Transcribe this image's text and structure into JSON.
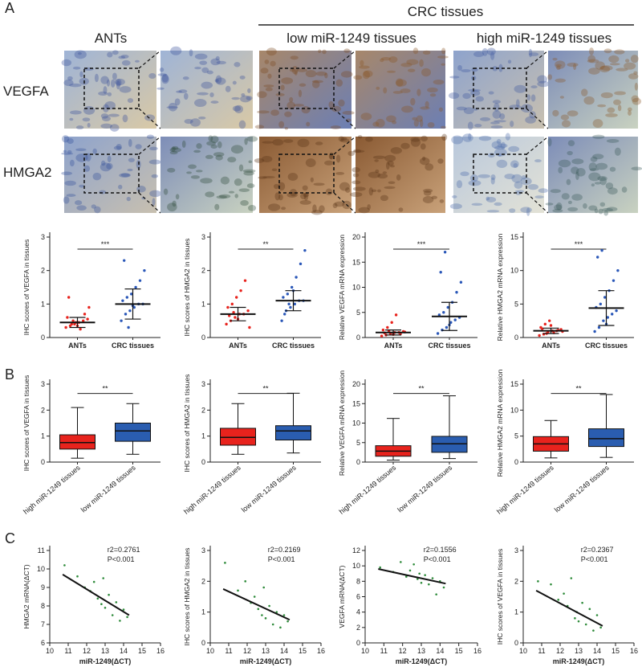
{
  "figure": {
    "panel_labels": [
      "A",
      "B",
      "C"
    ],
    "group_label": "CRC tissues",
    "column_labels": [
      "ANTs",
      "low miR-1249 tissues",
      "high miR-1249 tissues"
    ],
    "row_labels": [
      "VEGFA",
      "HMGA2"
    ]
  },
  "chart_data": [
    {
      "type": "dotplot",
      "ylabel": "IHC scores of VEGFA in tissues",
      "categories": [
        "ANTs",
        "CRC tissues"
      ],
      "ylim": [
        0,
        3
      ],
      "yticks": [
        0,
        1,
        2,
        3
      ],
      "significance": "***",
      "groups": [
        {
          "color": "#e8231d",
          "mean": 0.45,
          "sd": 0.15,
          "points": [
            0.3,
            0.35,
            0.4,
            0.45,
            0.5,
            0.55,
            0.6,
            0.4,
            0.45,
            0.25,
            0.7,
            0.9,
            1.2,
            0.5,
            0.35
          ]
        },
        {
          "color": "#2a57b8",
          "mean": 1.0,
          "sd": 0.45,
          "points": [
            0.5,
            0.7,
            0.8,
            0.9,
            1.0,
            1.0,
            1.1,
            1.2,
            1.3,
            1.5,
            1.7,
            2.0,
            2.3,
            0.3,
            0.95
          ]
        }
      ]
    },
    {
      "type": "dotplot",
      "ylabel": "IHC scores of HMGA2 in tissues",
      "categories": [
        "ANTs",
        "CRC tissues"
      ],
      "ylim": [
        0,
        3
      ],
      "yticks": [
        0,
        1,
        2,
        3
      ],
      "significance": "**",
      "groups": [
        {
          "color": "#e8231d",
          "mean": 0.7,
          "sd": 0.2,
          "points": [
            0.4,
            0.5,
            0.6,
            0.7,
            0.7,
            0.8,
            0.9,
            1.0,
            1.2,
            1.4,
            1.7,
            0.3,
            0.65,
            0.75,
            0.55
          ]
        },
        {
          "color": "#2a57b8",
          "mean": 1.1,
          "sd": 0.3,
          "points": [
            0.5,
            0.8,
            0.9,
            1.0,
            1.1,
            1.1,
            1.2,
            1.3,
            1.5,
            1.8,
            2.2,
            2.6,
            0.7,
            1.0,
            1.4
          ]
        }
      ]
    },
    {
      "type": "dotplot",
      "ylabel": "Relative VEGFA mRNA expression",
      "categories": [
        "ANTs",
        "CRC tissues"
      ],
      "ylim": [
        0,
        20
      ],
      "yticks": [
        0,
        5,
        10,
        15,
        20
      ],
      "significance": "***",
      "groups": [
        {
          "color": "#e8231d",
          "mean": 1.0,
          "sd": 0.5,
          "points": [
            0.3,
            0.5,
            0.8,
            1.0,
            1.0,
            1.2,
            1.5,
            2.0,
            3.0,
            4.5,
            0.7,
            1.1,
            0.9,
            1.3,
            0.6
          ]
        },
        {
          "color": "#2a57b8",
          "mean": 4.2,
          "sd": 2.8,
          "points": [
            0.8,
            1.5,
            2.0,
            3.0,
            3.5,
            4.0,
            4.5,
            5.0,
            6.0,
            7.0,
            9.0,
            11.0,
            13.0,
            17.0,
            2.5
          ]
        }
      ]
    },
    {
      "type": "dotplot",
      "ylabel": "Relative HMGA2 mRNA expression",
      "categories": [
        "ANTs",
        "CRC tissues"
      ],
      "ylim": [
        0,
        15
      ],
      "yticks": [
        0,
        5,
        10,
        15
      ],
      "significance": "***",
      "groups": [
        {
          "color": "#e8231d",
          "mean": 1.0,
          "sd": 0.4,
          "points": [
            0.3,
            0.5,
            0.8,
            1.0,
            1.0,
            1.2,
            1.5,
            2.0,
            2.5,
            0.7,
            1.1,
            0.9,
            1.3,
            0.6,
            1.8
          ]
        },
        {
          "color": "#2a57b8",
          "mean": 4.4,
          "sd": 2.6,
          "points": [
            0.9,
            1.5,
            2.5,
            3.0,
            3.5,
            4.0,
            4.5,
            5.0,
            6.0,
            7.0,
            8.5,
            10.0,
            12.0,
            13.0,
            2.0
          ]
        }
      ]
    },
    {
      "type": "box",
      "ylabel": "IHC scores of VEGFA in tissues",
      "categories": [
        "high miR-1249 tissues",
        "low miR-1249 tissues"
      ],
      "ylim": [
        0,
        3
      ],
      "yticks": [
        0,
        1,
        2,
        3
      ],
      "significance": "**",
      "boxes": [
        {
          "color": "#e8231d",
          "min": 0.15,
          "q1": 0.5,
          "median": 0.75,
          "q3": 1.05,
          "max": 2.1
        },
        {
          "color": "#2a5db0",
          "min": 0.3,
          "q1": 0.8,
          "median": 1.2,
          "q3": 1.5,
          "max": 2.25
        }
      ]
    },
    {
      "type": "box",
      "ylabel": "IHC scores of HMGA2 in tissues",
      "categories": [
        "high miR-1249 tissues",
        "low miR-1249 tissues"
      ],
      "ylim": [
        0,
        3
      ],
      "yticks": [
        0,
        1,
        2,
        3
      ],
      "significance": "**",
      "boxes": [
        {
          "color": "#e8231d",
          "min": 0.3,
          "q1": 0.65,
          "median": 0.95,
          "q3": 1.3,
          "max": 2.25
        },
        {
          "color": "#2a5db0",
          "min": 0.35,
          "q1": 0.85,
          "median": 1.2,
          "q3": 1.4,
          "max": 2.65
        }
      ]
    },
    {
      "type": "box",
      "ylabel": "Relative VEGFA mRNA expression",
      "categories": [
        "high miR-1249 tissues",
        "low miR-1249 tissues"
      ],
      "ylim": [
        0,
        20
      ],
      "yticks": [
        0,
        5,
        10,
        15,
        20
      ],
      "significance": "**",
      "boxes": [
        {
          "color": "#e8231d",
          "min": 0.5,
          "q1": 1.5,
          "median": 2.8,
          "q3": 4.2,
          "max": 11.2
        },
        {
          "color": "#2a5db0",
          "min": 0.9,
          "q1": 2.5,
          "median": 4.7,
          "q3": 6.6,
          "max": 17
        }
      ]
    },
    {
      "type": "box",
      "ylabel": "Relative HMGA2 mRNA expression",
      "categories": [
        "high miR-1249 tissues",
        "low miR-1249 tissues"
      ],
      "ylim": [
        0,
        15
      ],
      "yticks": [
        0,
        5,
        10,
        15
      ],
      "significance": "**",
      "boxes": [
        {
          "color": "#e8231d",
          "min": 0.8,
          "q1": 2.1,
          "median": 3.5,
          "q3": 4.9,
          "max": 8.0
        },
        {
          "color": "#2a5db0",
          "min": 0.9,
          "q1": 3.0,
          "median": 4.5,
          "q3": 6.4,
          "max": 13.0
        }
      ]
    },
    {
      "type": "scatter",
      "ylabel": "HMGA2 mRNA(ΔCT)",
      "xlabel": "miR-1249(ΔCT)",
      "annotations": [
        "r2=0.2761",
        "P<0.001"
      ],
      "color": "#2e8b3a",
      "xlim": [
        10,
        16
      ],
      "xticks": [
        10,
        11,
        12,
        13,
        14,
        15,
        16
      ],
      "ylim": [
        6,
        11
      ],
      "yticks": [
        6,
        7,
        8,
        9,
        10,
        11
      ],
      "x": [
        10.8,
        11.5,
        11.9,
        12.2,
        12.4,
        12.6,
        12.8,
        12.9,
        13.0,
        13.2,
        13.4,
        13.6,
        13.8,
        14.0,
        14.2
      ],
      "y": [
        10.2,
        9.6,
        9.0,
        8.8,
        9.3,
        8.4,
        8.1,
        9.5,
        7.9,
        8.6,
        7.5,
        8.2,
        7.2,
        7.8,
        7.4
      ],
      "fit": {
        "x": [
          10.7,
          14.3
        ],
        "y": [
          9.7,
          7.5
        ]
      }
    },
    {
      "type": "scatter",
      "ylabel": "IHC scores of HMGA2 in tissues",
      "xlabel": "miR-1249(ΔCT)",
      "annotations": [
        "r2=0.2169",
        "P<0.001"
      ],
      "color": "#2e8b3a",
      "xlim": [
        10,
        16
      ],
      "xticks": [
        10,
        11,
        12,
        13,
        14,
        15,
        16
      ],
      "ylim": [
        0,
        3
      ],
      "yticks": [
        0,
        1,
        2,
        3
      ],
      "x": [
        10.8,
        11.5,
        11.9,
        12.2,
        12.4,
        12.6,
        12.8,
        12.9,
        13.0,
        13.2,
        13.4,
        13.6,
        13.8,
        14.0,
        14.2
      ],
      "y": [
        2.6,
        1.7,
        2.0,
        1.3,
        1.5,
        1.1,
        0.9,
        1.8,
        0.8,
        1.2,
        0.6,
        1.0,
        0.5,
        0.9,
        0.7
      ],
      "fit": {
        "x": [
          10.7,
          14.3
        ],
        "y": [
          1.75,
          0.75
        ]
      }
    },
    {
      "type": "scatter",
      "ylabel": "VEGFA mRNA(ΔCT)",
      "xlabel": "miR-1249(ΔCT)",
      "annotations": [
        "r2=0.1556",
        "P<0.001"
      ],
      "color": "#2e8b3a",
      "xlim": [
        10,
        16
      ],
      "xticks": [
        10,
        11,
        12,
        13,
        14,
        15,
        16
      ],
      "ylim": [
        0,
        12
      ],
      "yticks": [
        0,
        2,
        4,
        6,
        8,
        10,
        12
      ],
      "x": [
        10.8,
        11.5,
        11.9,
        12.2,
        12.4,
        12.6,
        12.8,
        12.9,
        13.0,
        13.2,
        13.4,
        13.6,
        13.8,
        14.0,
        14.2
      ],
      "y": [
        9.8,
        9.2,
        10.5,
        8.6,
        9.4,
        10.2,
        8.3,
        9.0,
        7.8,
        8.8,
        7.6,
        8.4,
        6.3,
        8.0,
        7.2
      ],
      "fit": {
        "x": [
          10.7,
          14.3
        ],
        "y": [
          9.6,
          7.7
        ]
      }
    },
    {
      "type": "scatter",
      "ylabel": "IHC scores of VEGFA in tissues",
      "xlabel": "miR-1249(ΔCT)",
      "annotations": [
        "r2=0.2367",
        "P<0.001"
      ],
      "color": "#2e8b3a",
      "xlim": [
        10,
        16
      ],
      "xticks": [
        10,
        11,
        12,
        13,
        14,
        15,
        16
      ],
      "ylim": [
        0,
        3
      ],
      "yticks": [
        0,
        1,
        2,
        3
      ],
      "x": [
        10.8,
        11.5,
        11.9,
        12.2,
        12.4,
        12.6,
        12.8,
        12.9,
        13.0,
        13.2,
        13.4,
        13.6,
        13.8,
        14.0,
        14.2
      ],
      "y": [
        2.0,
        1.9,
        1.4,
        1.6,
        1.2,
        2.1,
        0.8,
        1.0,
        0.7,
        1.3,
        0.6,
        1.1,
        0.4,
        0.9,
        0.5
      ],
      "fit": {
        "x": [
          10.7,
          14.3
        ],
        "y": [
          1.7,
          0.55
        ]
      }
    }
  ]
}
